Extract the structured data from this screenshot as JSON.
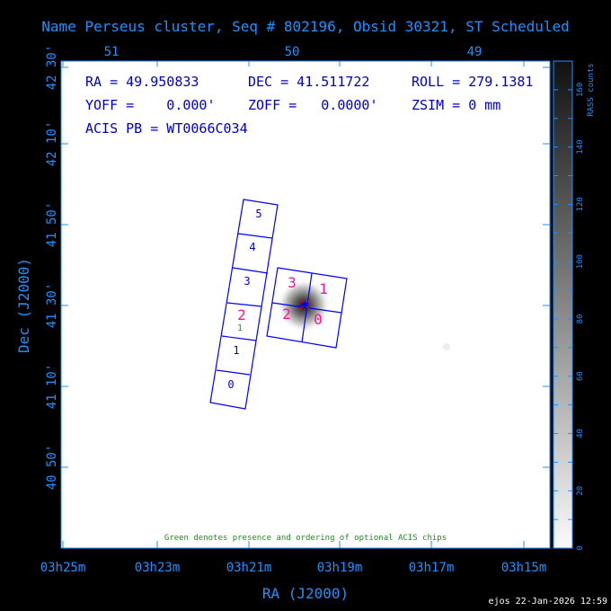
{
  "title": "Name Perseus cluster, Seq # 802196, Obsid 30321, ST Scheduled",
  "info": {
    "ra": "RA = 49.950833",
    "dec": "DEC = 41.511722",
    "roll": "ROLL = 279.1381",
    "yoff": "YOFF =    0.000'",
    "zoff": "ZOFF =   0.0000'",
    "zsim": "ZSIM = 0 mm",
    "acis_pb": "ACIS PB = WT0066C034"
  },
  "note": "Green denotes presence and ordering of optional ACIS chips",
  "footer": "ejos 22-Jan-2026 12:59",
  "chart_data": {
    "type": "heatmap",
    "title": "Name Perseus cluster, Seq # 802196, Obsid 30321, ST Scheduled",
    "xlabel": "RA (J2000)",
    "ylabel": "Dec (J2000)",
    "x_ticks_bottom": [
      "03h25m",
      "03h23m",
      "03h21m",
      "03h19m",
      "03h17m",
      "03h15m"
    ],
    "x_ticks_top": [
      "51",
      "50",
      "49"
    ],
    "y_ticks": [
      "42 30'",
      "42 10'",
      "41 50'",
      "41 30'",
      "41 10'",
      "40 50'"
    ],
    "colorbar": {
      "label": "RASS counts",
      "ticks": [
        "0",
        "20",
        "40",
        "60",
        "80",
        "100",
        "120",
        "140",
        "160"
      ],
      "range": [
        0,
        170
      ]
    },
    "chips_acis_s": [
      "0",
      "1",
      "2",
      "3",
      "4",
      "5"
    ],
    "chips_acis_i": [
      "0",
      "1",
      "2",
      "3"
    ],
    "optional_chip_label": "1",
    "colors": {
      "axes": "#1e90ff",
      "chips": "#0000ff",
      "selected_chips": "#ff1493",
      "optional": "#228b22"
    }
  }
}
